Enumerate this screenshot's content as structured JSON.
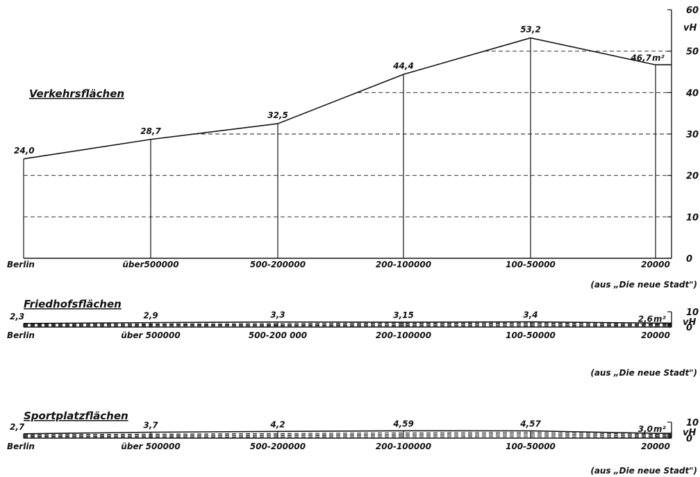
{
  "chart_data": [
    {
      "type": "area",
      "title": "Verkehrsflächen",
      "categories": [
        "Berlin",
        "über500000",
        "500-200000",
        "200-100000",
        "100-50000",
        "20000"
      ],
      "values": [
        24.0,
        28.7,
        32.5,
        44.4,
        53.2,
        46.7
      ],
      "value_labels": [
        "24,0",
        "28,7",
        "32,5",
        "44,4",
        "53,2",
        "46,7"
      ],
      "last_unit": "m²",
      "ylabel": "vH",
      "ylim": [
        0,
        60
      ],
      "yticks": [
        0,
        10,
        20,
        30,
        40,
        50,
        60
      ],
      "ytick_labels": [
        "0",
        "10",
        "20",
        "30",
        "40",
        "50",
        "60"
      ],
      "source_note": "(aus „Die neue Stadt\")"
    },
    {
      "type": "area",
      "title": "Friedhofsflächen",
      "categories": [
        "Berlin",
        "über 500000",
        "500-200 000",
        "200-100000",
        "100-50000",
        "20000"
      ],
      "values": [
        2.3,
        2.9,
        3.3,
        3.15,
        3.4,
        2.6
      ],
      "value_labels": [
        "2,3",
        "2,9",
        "3,3",
        "3,15",
        "3,4",
        "2,6"
      ],
      "last_unit": "m²",
      "ylabel": "vH",
      "ylim": [
        0,
        10
      ],
      "yticks": [
        0,
        10
      ],
      "ytick_labels": [
        "0",
        "10"
      ],
      "source_note": "(aus „Die neue Stadt\")"
    },
    {
      "type": "area",
      "title": "Sportplatzflächen",
      "categories": [
        "Berlin",
        "über 500000",
        "500-200000",
        "200-100000",
        "100-50000",
        "20000"
      ],
      "values": [
        2.7,
        3.7,
        4.2,
        4.59,
        4.57,
        3.0
      ],
      "value_labels": [
        "2,7",
        "3,7",
        "4,2",
        "4,59",
        "4,57",
        "3,0"
      ],
      "last_unit": "m²",
      "ylabel": "vH",
      "ylim": [
        0,
        10
      ],
      "yticks": [
        0,
        10
      ],
      "ytick_labels": [
        "0",
        "10"
      ],
      "source_note": "(aus „Die neue Stadt\")"
    }
  ]
}
